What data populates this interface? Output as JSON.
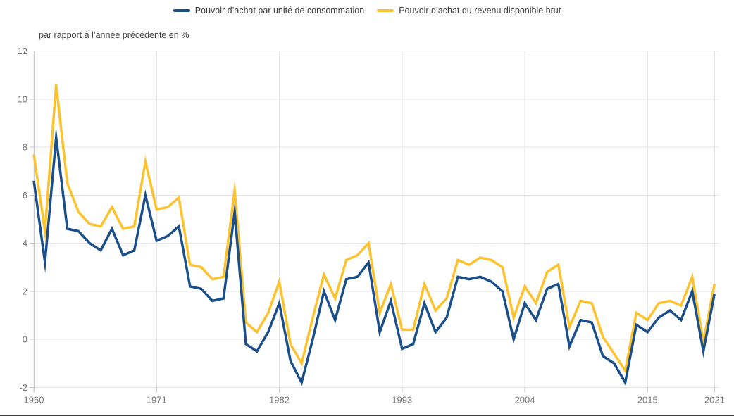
{
  "chart_data": {
    "type": "line",
    "title": "",
    "ylabel": "par rapport à l’année précédente en %",
    "xlabel": "",
    "xlim": [
      1960,
      2021
    ],
    "ylim": [
      -2,
      12
    ],
    "grid": true,
    "legend_position": "top",
    "x_ticks": [
      1960,
      1971,
      1982,
      1993,
      2004,
      2015,
      2021
    ],
    "y_ticks": [
      12,
      10,
      8,
      6,
      4,
      2,
      0,
      -2
    ],
    "x": [
      1960,
      1961,
      1962,
      1963,
      1964,
      1965,
      1966,
      1967,
      1968,
      1969,
      1970,
      1971,
      1972,
      1973,
      1974,
      1975,
      1976,
      1977,
      1978,
      1979,
      1980,
      1981,
      1982,
      1983,
      1984,
      1985,
      1986,
      1987,
      1988,
      1989,
      1990,
      1991,
      1992,
      1993,
      1994,
      1995,
      1996,
      1997,
      1998,
      1999,
      2000,
      2001,
      2002,
      2003,
      2004,
      2005,
      2006,
      2007,
      2008,
      2009,
      2010,
      2011,
      2012,
      2013,
      2014,
      2015,
      2016,
      2017,
      2018,
      2019,
      2020,
      2021
    ],
    "series": [
      {
        "name": "Pouvoir d’achat par unité de consommation",
        "color": "#1b4f8a",
        "values": [
          6.6,
          3.2,
          8.4,
          4.6,
          4.5,
          4.0,
          3.7,
          4.6,
          3.5,
          3.7,
          6.0,
          4.1,
          4.3,
          4.7,
          2.2,
          2.1,
          1.6,
          1.7,
          5.3,
          -0.2,
          -0.5,
          0.3,
          1.5,
          -0.9,
          -1.8,
          0.0,
          2.0,
          0.8,
          2.5,
          2.6,
          3.2,
          0.3,
          1.6,
          -0.4,
          -0.2,
          1.5,
          0.3,
          0.9,
          2.6,
          2.5,
          2.6,
          2.4,
          2.0,
          0.0,
          1.5,
          0.8,
          2.1,
          2.3,
          -0.3,
          0.8,
          0.7,
          -0.7,
          -1.0,
          -1.8,
          0.6,
          0.3,
          0.9,
          1.2,
          0.8,
          2.0,
          -0.5,
          1.9
        ]
      },
      {
        "name": "Pouvoir d’achat du revenu disponible brut",
        "color": "#fdc32f",
        "values": [
          7.7,
          4.5,
          10.6,
          6.5,
          5.3,
          4.8,
          4.7,
          5.5,
          4.6,
          4.7,
          7.4,
          5.4,
          5.5,
          5.9,
          3.1,
          3.0,
          2.5,
          2.6,
          6.2,
          0.7,
          0.3,
          1.1,
          2.4,
          -0.2,
          -1.0,
          0.9,
          2.7,
          1.7,
          3.3,
          3.5,
          4.0,
          1.1,
          2.3,
          0.4,
          0.4,
          2.3,
          1.2,
          1.7,
          3.3,
          3.1,
          3.4,
          3.3,
          3.0,
          0.9,
          2.2,
          1.5,
          2.8,
          3.1,
          0.5,
          1.6,
          1.5,
          0.1,
          -0.6,
          -1.3,
          1.1,
          0.8,
          1.5,
          1.6,
          1.4,
          2.6,
          -0.1,
          2.3
        ]
      }
    ],
    "colors": {
      "grid": "#e4e4e4",
      "axis": "#c8c8c8",
      "tick_label": "#767676",
      "text": "#3e3e3e",
      "bottom_line": "#3f3f3f"
    }
  }
}
